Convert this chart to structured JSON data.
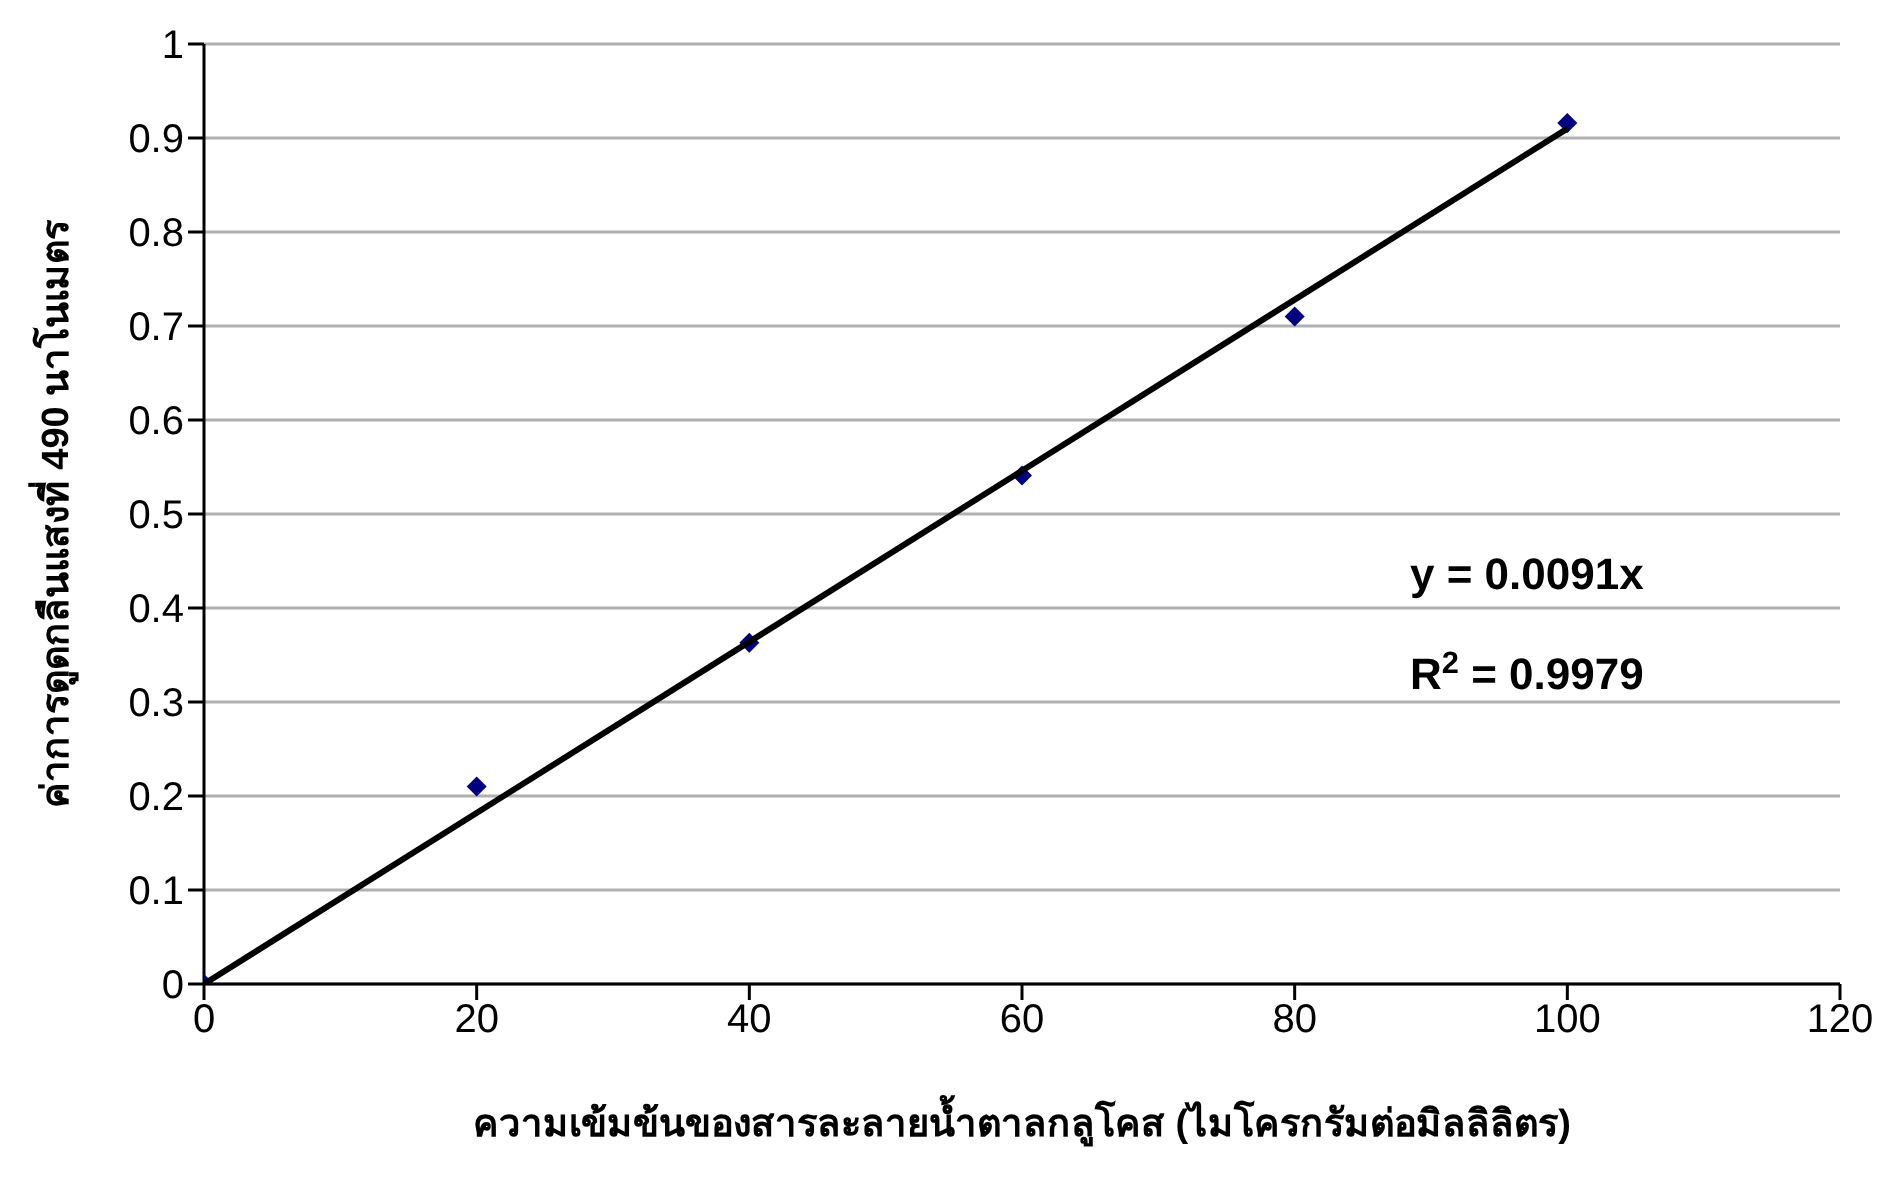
{
  "chart_data": {
    "type": "scatter",
    "xlabel": "ความเข้มข้นของสารละลายน้ำตาลกลูโคส (ไมโครกรัมต่อมิลลิลิตร)",
    "ylabel": "ค่าการดูดกลืนแสงที่ 490 นาโนเมตร",
    "x": [
      0,
      20,
      40,
      60,
      80,
      100
    ],
    "series": [
      {
        "color": "#000080",
        "values": [
          0,
          0.21,
          0.363,
          0.541,
          0.71,
          0.916
        ],
        "marker": "diamond"
      },
      {
        "type": "line",
        "color": "#000000",
        "x": [
          0,
          100
        ],
        "values": [
          0,
          0.91
        ],
        "marker": "none"
      }
    ],
    "xlim": [
      0,
      120
    ],
    "xticks": [
      0,
      20,
      40,
      60,
      80,
      100,
      120
    ],
    "ylim": [
      0,
      1
    ],
    "yticks": [
      0,
      0.1,
      0.2,
      0.3,
      0.4,
      0.5,
      0.6,
      0.7,
      0.8,
      0.9,
      1
    ],
    "grid": "y",
    "annotations": [
      "y = 0.0091x",
      "R$^{2}$ = 0.9979"
    ]
  }
}
